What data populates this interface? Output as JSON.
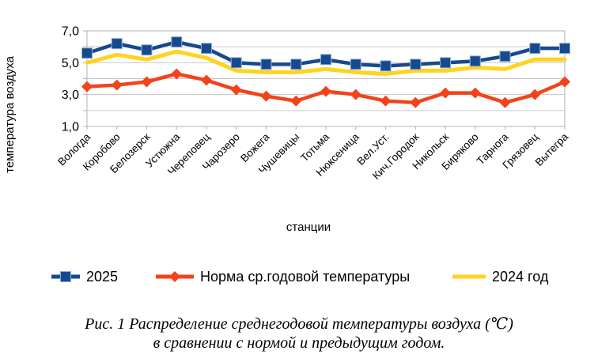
{
  "chart_data": {
    "type": "line",
    "title": "",
    "xlabel": "станции",
    "ylabel": "температура воздуха",
    "ylim": [
      1.0,
      7.0
    ],
    "grid": true,
    "grid_interval": 1.0,
    "legend_position": "bottom",
    "ytick_labels": [
      {
        "value": 7,
        "label": "7,0"
      },
      {
        "value": 5,
        "label": "5,0"
      },
      {
        "value": 3,
        "label": "3,0"
      },
      {
        "value": 1,
        "label": "1,0"
      }
    ],
    "categories": [
      "Вологда",
      "Коробово",
      "Белозерск",
      "Устюжна",
      "Череповец",
      "Чарозеро",
      "Вожега",
      "Чушевицы",
      "Тотьма",
      "Нюксеница",
      "Вел.Уст.",
      "Кич.Городок",
      "Никольск",
      "Биряково",
      "Тарнога",
      "Грязовец",
      "Вытегра"
    ],
    "series": [
      {
        "name": "2025",
        "color": "#17498F",
        "marker": "square",
        "values": [
          5.6,
          6.2,
          5.8,
          6.3,
          5.9,
          5.0,
          4.9,
          4.9,
          5.2,
          4.9,
          4.8,
          4.9,
          5.0,
          5.1,
          5.4,
          5.9,
          5.9
        ]
      },
      {
        "name": "Норма ср.годовой температуры",
        "color": "#F2431A",
        "marker": "diamond",
        "values": [
          3.5,
          3.6,
          3.8,
          4.3,
          3.9,
          3.3,
          2.9,
          2.6,
          3.2,
          3.0,
          2.6,
          2.5,
          3.1,
          3.1,
          2.5,
          3.0,
          3.8
        ]
      },
      {
        "name": "2024 год",
        "color": "#FFD320",
        "marker": "none",
        "values": [
          5.0,
          5.5,
          5.2,
          5.7,
          5.3,
          4.5,
          4.4,
          4.4,
          4.6,
          4.4,
          4.3,
          4.5,
          4.5,
          4.7,
          4.6,
          5.2,
          5.2
        ]
      }
    ]
  },
  "caption": {
    "line1": "Рис. 1 Распределение среднегодовой температуры воздуха (℃)",
    "line2": "в сравнении с нормой и предыдущим годом."
  },
  "colors": {
    "grid": "#C6C6C6",
    "axis": "#B3B3B3",
    "text": "#000000",
    "marker_edge": "#8FAFD4"
  }
}
